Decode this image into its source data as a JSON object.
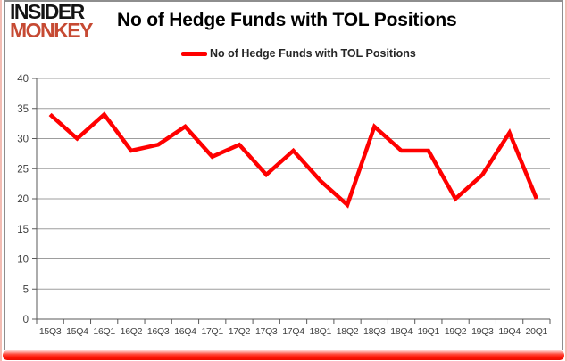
{
  "logo": {
    "line1": "INSIDER",
    "line2": "MONKEY"
  },
  "header": {
    "title": "No of Hedge Funds with TOL Positions"
  },
  "legend": {
    "label": "No of Hedge Funds with TOL Positions",
    "line_color": "#ff0000"
  },
  "colors": {
    "series_line": "#ff0000",
    "gridline": "#9d9d9d",
    "axis": "#595959",
    "tick_label": "#404040",
    "logo_red": "#c64a33",
    "frame_gray": "#8e8e8e",
    "outer_pink": "#f3bdb4",
    "bottom_bar_red": "#ff1505"
  },
  "chart_data": {
    "type": "line",
    "title": "No of Hedge Funds with TOL Positions",
    "xlabel": "",
    "ylabel": "",
    "categories": [
      "15Q3",
      "15Q4",
      "16Q1",
      "16Q2",
      "16Q3",
      "16Q4",
      "17Q1",
      "17Q2",
      "17Q3",
      "17Q4",
      "18Q1",
      "18Q2",
      "18Q3",
      "18Q4",
      "19Q1",
      "19Q2",
      "19Q3",
      "19Q4",
      "20Q1"
    ],
    "series": [
      {
        "name": "No of Hedge Funds with TOL Positions",
        "color": "#ff0000",
        "values": [
          34,
          30,
          34,
          28,
          29,
          32,
          27,
          29,
          24,
          28,
          23,
          19,
          32,
          28,
          28,
          20,
          24,
          31,
          20
        ]
      }
    ],
    "ylim": [
      0,
      40
    ],
    "ytick_step": 5,
    "grid": true,
    "legend_position": "top-center"
  }
}
